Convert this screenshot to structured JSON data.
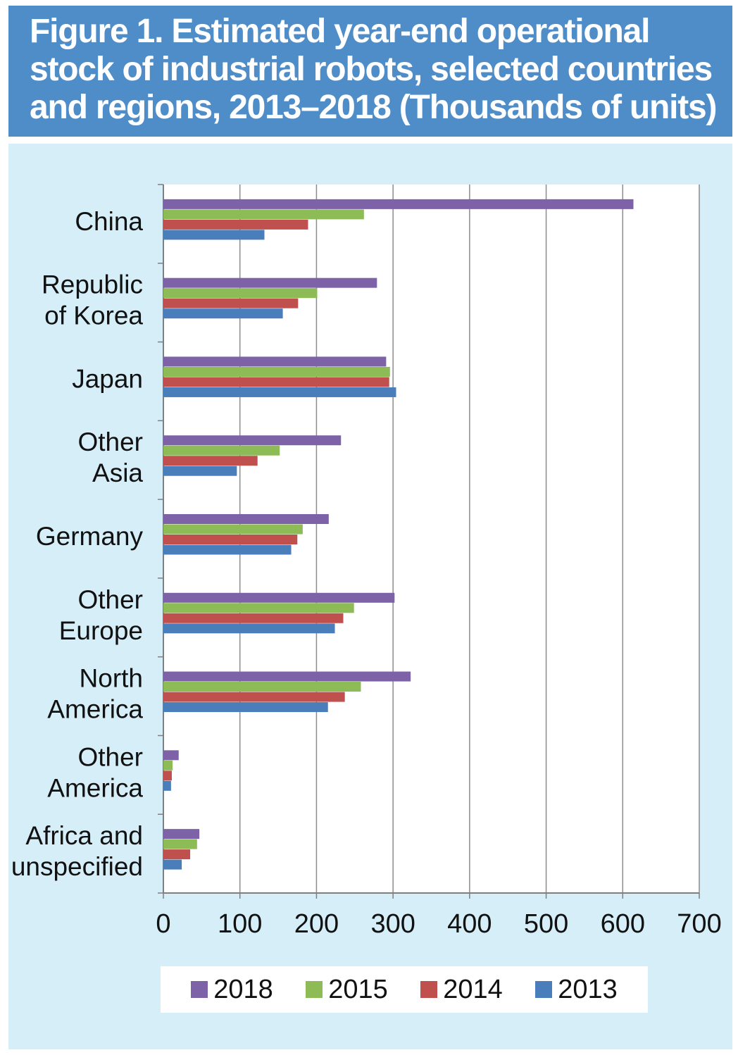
{
  "title": "Figure 1. Estimated year-end operational stock of industrial robots, selected countries and regions, 2013–2018 (Thousands of units)",
  "colors": {
    "title_bg": "#4f8dc9",
    "panel_bg": "#d5eef8",
    "plot_bg": "#ffffff",
    "s2018": "#7d62a8",
    "s2015": "#8dbb55",
    "s2014": "#c0504d",
    "s2013": "#4a7ebb"
  },
  "chart_data": {
    "type": "bar",
    "orientation": "horizontal",
    "title": "Figure 1. Estimated year-end operational stock of industrial robots, selected countries and regions, 2013–2018 (Thousands of units)",
    "xlabel": "",
    "ylabel": "",
    "xlim": [
      0,
      700
    ],
    "xticks": [
      0,
      100,
      200,
      300,
      400,
      500,
      600,
      700
    ],
    "grid": "vertical",
    "legend_position": "bottom",
    "categories": [
      [
        "China"
      ],
      [
        "Republic",
        "of Korea"
      ],
      [
        "Japan"
      ],
      [
        "Other",
        "Asia"
      ],
      [
        "Germany"
      ],
      [
        "Other",
        "Europe"
      ],
      [
        "North",
        "America"
      ],
      [
        "Other",
        "America"
      ],
      [
        "Africa and",
        "unspecified"
      ]
    ],
    "series": [
      {
        "name": "2018",
        "color": "#7d62a8",
        "values": [
          614,
          279,
          291,
          232,
          216,
          302,
          323,
          20,
          47
        ]
      },
      {
        "name": "2015",
        "color": "#8dbb55",
        "values": [
          262,
          201,
          296,
          152,
          182,
          249,
          258,
          12,
          44
        ]
      },
      {
        "name": "2014",
        "color": "#c0504d",
        "values": [
          189,
          176,
          295,
          123,
          175,
          235,
          237,
          11,
          35
        ]
      },
      {
        "name": "2013",
        "color": "#4a7ebb",
        "values": [
          132,
          156,
          304,
          96,
          167,
          224,
          215,
          10,
          24
        ]
      }
    ]
  }
}
